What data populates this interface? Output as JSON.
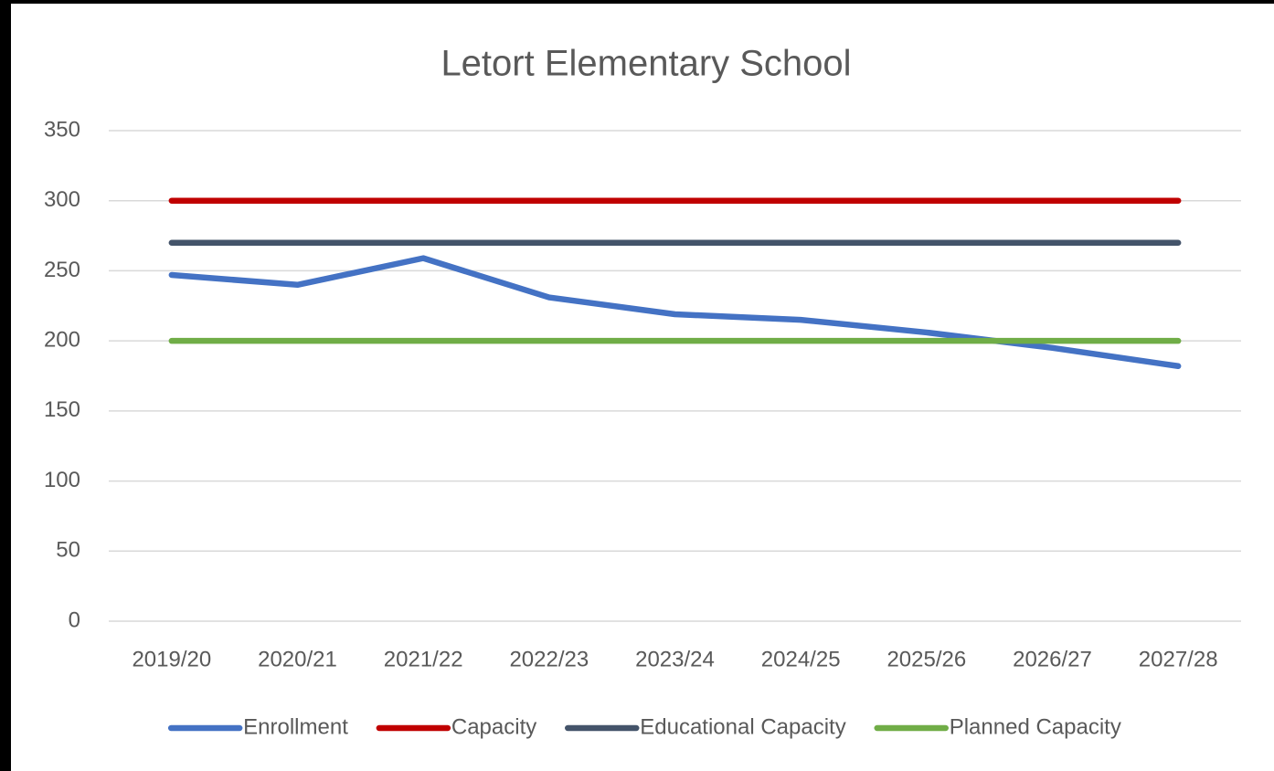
{
  "chart_data": {
    "type": "line",
    "title": "Letort Elementary School",
    "categories": [
      "2019/20",
      "2020/21",
      "2021/22",
      "2022/23",
      "2023/24",
      "2024/25",
      "2025/26",
      "2026/27",
      "2027/28"
    ],
    "series": [
      {
        "name": "Enrollment",
        "color": "#4472c4",
        "values": [
          247,
          240,
          259,
          231,
          219,
          215,
          206,
          195,
          182
        ]
      },
      {
        "name": "Capacity",
        "color": "#c00000",
        "values": [
          300,
          300,
          300,
          300,
          300,
          300,
          300,
          300,
          300
        ]
      },
      {
        "name": "Educational Capacity",
        "color": "#44546a",
        "values": [
          270,
          270,
          270,
          270,
          270,
          270,
          270,
          270,
          270
        ]
      },
      {
        "name": "Planned Capacity",
        "color": "#70ad47",
        "values": [
          200,
          200,
          200,
          200,
          200,
          200,
          200,
          200,
          200
        ]
      }
    ],
    "ylim": [
      0,
      350
    ],
    "yticks": [
      0,
      50,
      100,
      150,
      200,
      250,
      300,
      350
    ],
    "grid": true,
    "legend": "bottom"
  }
}
